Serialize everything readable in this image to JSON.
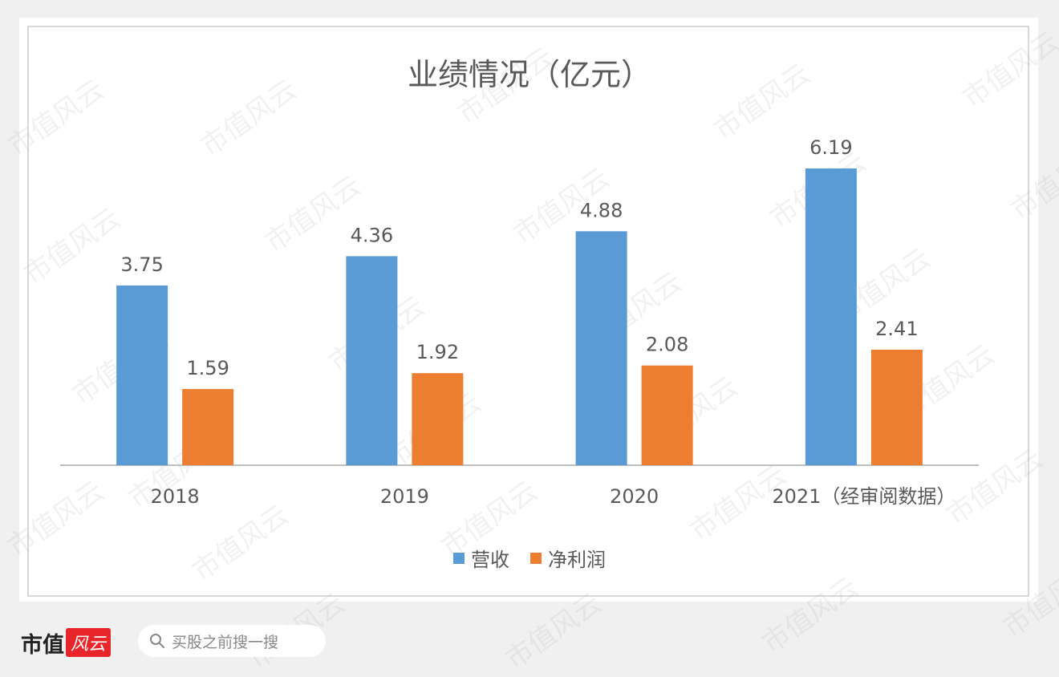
{
  "watermark_text": "市值风云",
  "brand": {
    "text": "市值",
    "mark": "风云"
  },
  "search": {
    "placeholder": "买股之前搜一搜",
    "icon": "search-icon"
  },
  "colors": {
    "revenue": "#5b9bd5",
    "profit": "#ed7d31",
    "text": "#595959",
    "axis": "#bfbfbf"
  },
  "chart_data": {
    "type": "bar",
    "title": "业绩情况（亿元）",
    "categories": [
      "2018",
      "2019",
      "2020",
      "2021（经审阅数据）"
    ],
    "series": [
      {
        "name": "营收",
        "values": [
          3.75,
          4.36,
          4.88,
          6.19
        ]
      },
      {
        "name": "净利润",
        "values": [
          1.59,
          1.92,
          2.08,
          2.41
        ]
      }
    ],
    "ylim": [
      0,
      7
    ],
    "grid": false,
    "legend": "bottom",
    "data_labels": true
  }
}
